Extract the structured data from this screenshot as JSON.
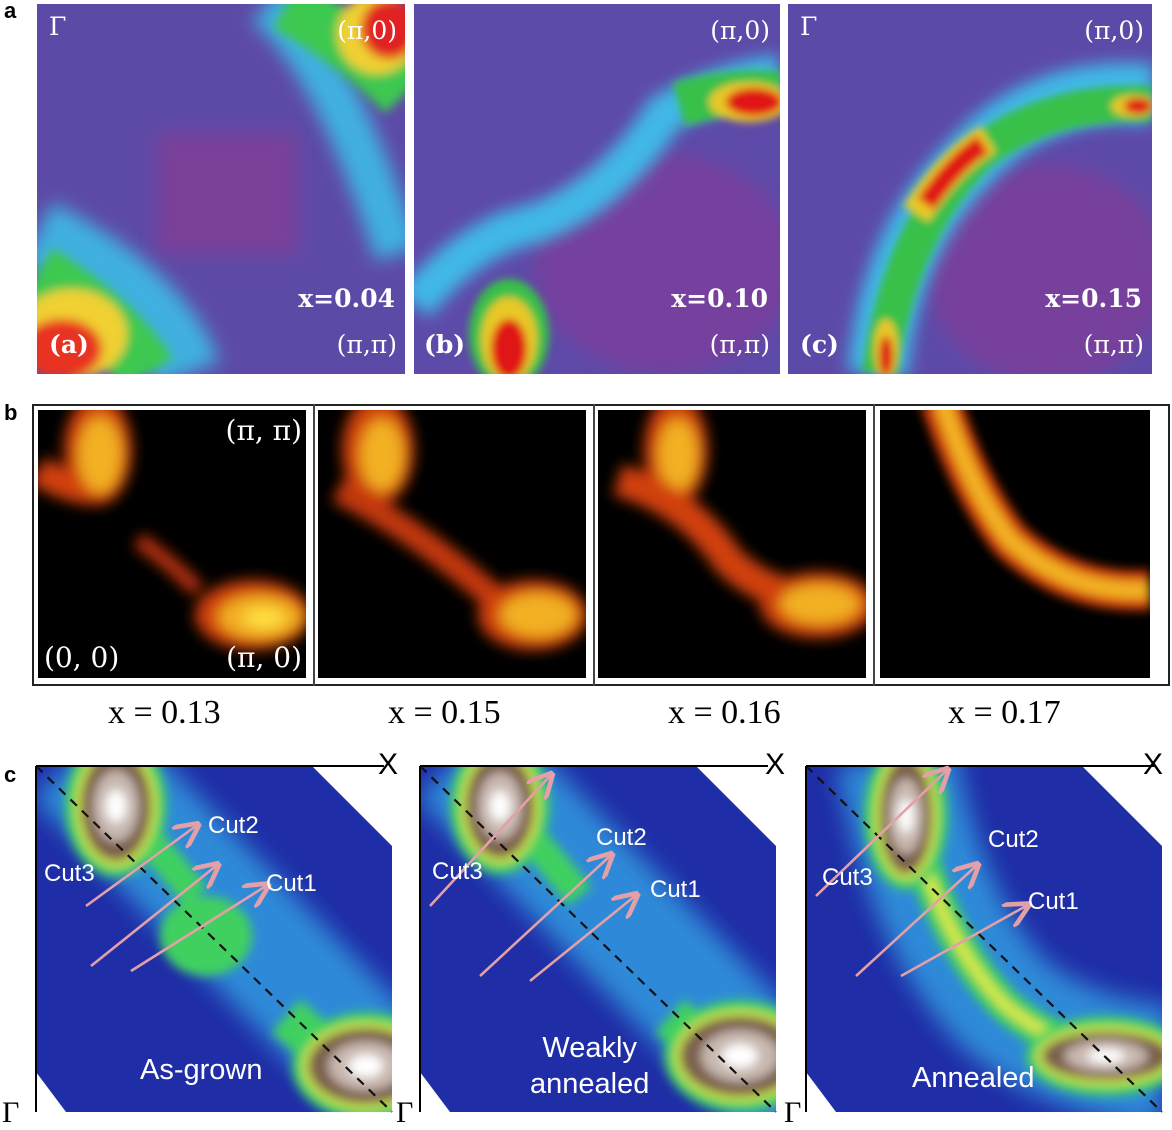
{
  "figure": {
    "panel_labels": [
      "a",
      "b",
      "c"
    ]
  },
  "row_a": {
    "panels": [
      {
        "tag": "(a)",
        "gamma": "Γ",
        "corner_top": "(π,0)",
        "corner_bottom": "(π,π)",
        "doping": "x=0.04"
      },
      {
        "tag": "(b)",
        "gamma": "",
        "corner_top": "(π,0)",
        "corner_bottom": "(π,π)",
        "doping": "x=0.10"
      },
      {
        "tag": "(c)",
        "gamma": "Γ",
        "corner_top": "(π,0)",
        "corner_bottom": "(π,π)",
        "doping": "x=0.15"
      }
    ]
  },
  "row_b": {
    "corners": {
      "top_right": "(π, π)",
      "bottom_left": "(0, 0)",
      "bottom_right": "(π, 0)"
    },
    "dopings": [
      "x = 0.13",
      "x = 0.15",
      "x = 0.16",
      "x = 0.17"
    ]
  },
  "row_c": {
    "axis_x": "X",
    "axis_gamma": "Γ",
    "cuts": [
      "Cut1",
      "Cut2",
      "Cut3"
    ],
    "states": [
      "As-grown",
      "Weakly\nannealed",
      "Annealed"
    ]
  },
  "colors": {
    "map_background_a": "#6a4fa8",
    "map_background_b": "#000000",
    "map_background_c": "#1f2fa8",
    "arrow": "#e3a0a8"
  }
}
